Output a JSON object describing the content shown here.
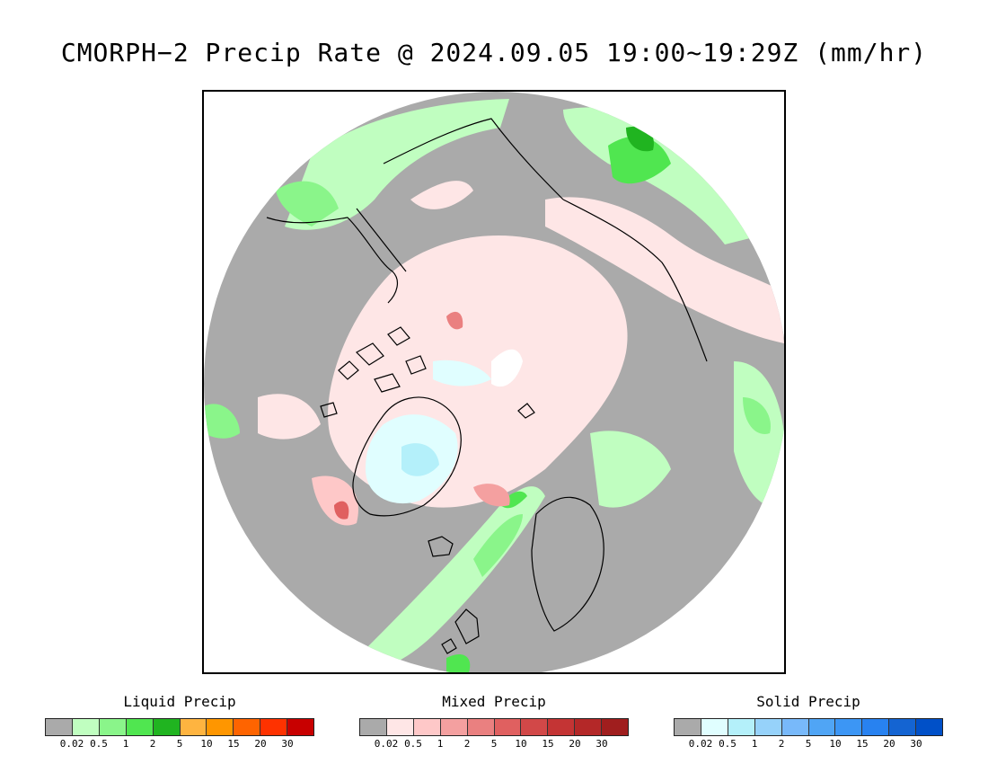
{
  "header": {
    "title": "CMORPH−2 Precip Rate @ 2024.09.05 19:00~19:29Z (mm/hr)"
  },
  "map": {
    "projection": "polar-stereographic-north",
    "background_color": "#aaaaaa",
    "coastline_color": "#000000"
  },
  "legends": [
    {
      "id": "liquid",
      "title": "Liquid Precip",
      "colors": [
        "#aaaaaa",
        "#c0fec0",
        "#8af58a",
        "#50e650",
        "#20b420",
        "#feb440",
        "#fe9600",
        "#fe6400",
        "#fe3200",
        "#c80000"
      ],
      "ticks": [
        "0.02",
        "0.5",
        "1",
        "2",
        "5",
        "10",
        "15",
        "20",
        "30"
      ]
    },
    {
      "id": "mixed",
      "title": "Mixed Precip",
      "colors": [
        "#aaaaaa",
        "#fee6e6",
        "#fec8c8",
        "#f4a0a0",
        "#ea8080",
        "#e06060",
        "#d24848",
        "#c43434",
        "#b42828",
        "#a01e1e"
      ],
      "ticks": [
        "0.02",
        "0.5",
        "1",
        "2",
        "5",
        "10",
        "15",
        "20",
        "30"
      ]
    },
    {
      "id": "solid",
      "title": "Solid Precip",
      "colors": [
        "#aaaaaa",
        "#e0feff",
        "#b4f0fa",
        "#96d2fa",
        "#78b9fa",
        "#50a5f5",
        "#3c96f5",
        "#2882f0",
        "#1464d2",
        "#0050c8"
      ],
      "ticks": [
        "0.02",
        "0.5",
        "1",
        "2",
        "5",
        "10",
        "15",
        "20",
        "30"
      ]
    }
  ]
}
